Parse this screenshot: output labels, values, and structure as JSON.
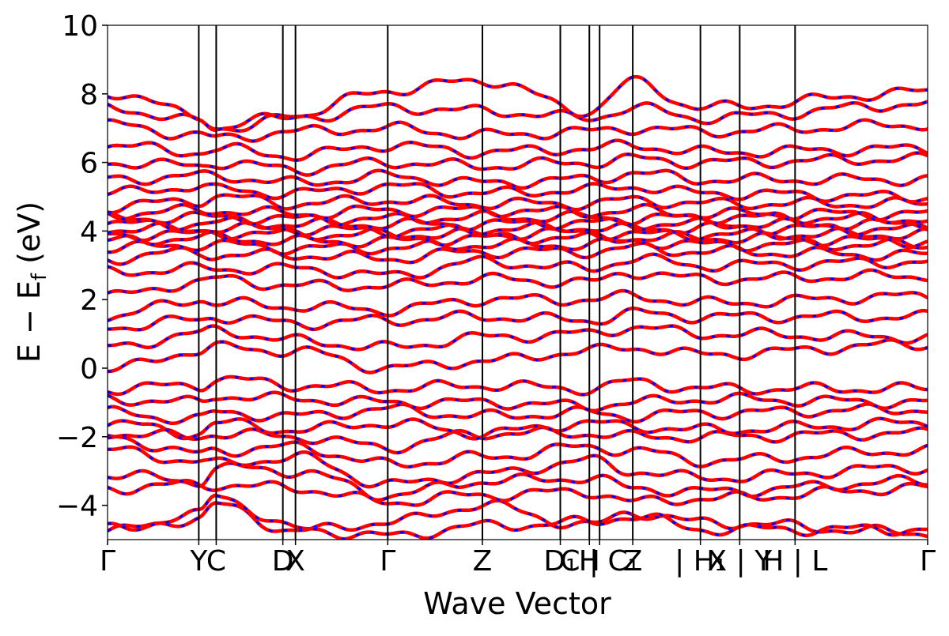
{
  "chart_data": {
    "type": "line",
    "title": "",
    "xlabel": "Wave Vector",
    "ylabel": "E − E_f (eV)",
    "ylabel_main": "E  −  E",
    "ylabel_sub": "f",
    "ylabel_unit": " (eV)",
    "ylim": [
      -5,
      10
    ],
    "yticks": [
      "−4",
      "−2",
      "0",
      "2",
      "4",
      "6",
      "8",
      "10"
    ],
    "ytick_values": [
      -4,
      -2,
      0,
      2,
      4,
      6,
      8,
      10
    ],
    "xlim": [
      0,
      24
    ],
    "k_points": [
      {
        "label": "Γ",
        "x": 0
      },
      {
        "label": "Y",
        "x": 2.67
      },
      {
        "label": "C",
        "x": 3.18
      },
      {
        "label": "D",
        "x": 5.13
      },
      {
        "label": "X",
        "x": 5.5
      },
      {
        "label": "Γ",
        "x": 8.2
      },
      {
        "label": "Z",
        "x": 10.97
      },
      {
        "label": "D₁",
        "x": 13.25
      },
      {
        "label": "H",
        "x": 14.1
      },
      {
        "label": "C | C₁",
        "x": 14.4
      },
      {
        "label": "Z",
        "x": 15.37
      },
      {
        "label": "| H₁",
        "x": 17.35
      },
      {
        "label": "X | Y",
        "x": 18.5
      },
      {
        "label": "H | L",
        "x": 20.12
      },
      {
        "label": "Γ",
        "x": 24
      }
    ],
    "series": [
      {
        "color": "#ff0000",
        "style": "solid"
      },
      {
        "color": "#0000ff",
        "style": "dashed"
      }
    ],
    "bands": [
      {
        "anchors": [
          -4.75,
          -4.4,
          -4.0,
          -4.75,
          -4.5,
          -4.0,
          -4.6,
          -4.2,
          -4.5,
          -4.8
        ]
      },
      {
        "anchors": [
          -4.7,
          -4.3,
          -3.7,
          -4.7,
          -4.9,
          -4.6,
          -4.5,
          -4.3,
          -4.7,
          -4.7
        ]
      },
      {
        "anchors": [
          -3.5,
          -3.4,
          -3.4,
          -3.5,
          -3.9,
          -3.7,
          -3.6,
          -3.9,
          -3.8,
          -3.5
        ]
      },
      {
        "anchors": [
          -3.1,
          -3.3,
          -2.9,
          -3.0,
          -3.7,
          -3.3,
          -3.2,
          -3.5,
          -3.6,
          -3.3
        ]
      },
      {
        "anchors": [
          -2.4,
          -2.7,
          -2.8,
          -2.6,
          -3.4,
          -3.1,
          -2.7,
          -3.0,
          -3.2,
          -2.9
        ]
      },
      {
        "anchors": [
          -2.0,
          -2.5,
          -2.4,
          -2.3,
          -2.8,
          -2.6,
          -2.3,
          -2.4,
          -2.7,
          -2.4
        ]
      },
      {
        "anchors": [
          -1.9,
          -2.0,
          -1.9,
          -2.0,
          -2.3,
          -1.9,
          -1.9,
          -2.0,
          -2.0,
          -1.9
        ]
      },
      {
        "anchors": [
          -1.6,
          -1.9,
          -1.6,
          -1.8,
          -1.6,
          -1.9,
          -1.6,
          -1.7,
          -1.8,
          -1.6
        ]
      },
      {
        "anchors": [
          -1.3,
          -1.5,
          -1.3,
          -1.4,
          -1.2,
          -1.4,
          -1.3,
          -1.4,
          -1.3,
          -1.2
        ]
      },
      {
        "anchors": [
          -0.9,
          -1.0,
          -0.8,
          -0.9,
          -1.0,
          -1.0,
          -1.1,
          -1.0,
          -0.9,
          -1.0
        ]
      },
      {
        "anchors": [
          -0.6,
          -0.5,
          -0.3,
          -0.5,
          -0.6,
          -0.5,
          -0.6,
          -0.4,
          -0.6,
          -0.6
        ]
      },
      {
        "anchors": [
          -0.05,
          0.5,
          0.6,
          0.5,
          0.0,
          0.2,
          0.5,
          0.6,
          0.4,
          0.7
        ]
      },
      {
        "anchors": [
          0.6,
          1.0,
          1.1,
          0.8,
          0.6,
          0.9,
          1.0,
          1.2,
          1.0,
          0.9
        ]
      },
      {
        "anchors": [
          1.2,
          1.4,
          1.5,
          1.3,
          1.4,
          1.5,
          1.4,
          1.6,
          1.5,
          1.5
        ]
      },
      {
        "anchors": [
          1.5,
          2.0,
          1.9,
          1.8,
          1.7,
          2.0,
          2.0,
          2.1,
          1.9,
          2.1
        ]
      },
      {
        "anchors": [
          2.1,
          2.5,
          2.6,
          2.4,
          2.4,
          2.6,
          2.5,
          2.8,
          2.6,
          2.7
        ]
      },
      {
        "anchors": [
          2.8,
          2.9,
          2.9,
          2.9,
          2.7,
          3.1,
          2.9,
          3.2,
          3.0,
          3.1
        ]
      },
      {
        "anchors": [
          3.2,
          3.4,
          3.3,
          3.3,
          3.2,
          3.4,
          3.4,
          3.5,
          3.4,
          3.3
        ]
      },
      {
        "anchors": [
          3.5,
          3.6,
          3.6,
          3.5,
          3.5,
          3.6,
          3.6,
          3.7,
          3.6,
          3.6
        ]
      },
      {
        "anchors": [
          3.7,
          3.8,
          3.8,
          3.7,
          3.7,
          3.8,
          3.8,
          3.8,
          3.8,
          3.7
        ]
      },
      {
        "anchors": [
          3.9,
          3.9,
          3.95,
          3.9,
          3.9,
          3.9,
          3.95,
          3.9,
          3.9,
          3.9
        ]
      },
      {
        "anchors": [
          4.05,
          4.05,
          4.1,
          4.05,
          4.0,
          4.05,
          4.1,
          4.05,
          4.1,
          4.05
        ]
      },
      {
        "anchors": [
          4.2,
          4.2,
          4.25,
          4.2,
          4.2,
          4.2,
          4.25,
          4.2,
          4.2,
          4.2
        ]
      },
      {
        "anchors": [
          4.35,
          4.4,
          4.4,
          4.35,
          4.35,
          4.4,
          4.4,
          4.35,
          4.4,
          4.35
        ]
      },
      {
        "anchors": [
          4.5,
          4.6,
          4.6,
          4.5,
          4.6,
          4.6,
          4.55,
          4.6,
          4.5,
          4.5
        ]
      },
      {
        "anchors": [
          4.7,
          4.9,
          5.0,
          4.8,
          4.9,
          4.8,
          4.8,
          4.9,
          4.8,
          4.8
        ]
      },
      {
        "anchors": [
          5.1,
          5.3,
          5.2,
          5.1,
          5.3,
          5.1,
          5.2,
          5.3,
          5.1,
          5.0
        ]
      },
      {
        "anchors": [
          5.5,
          5.6,
          5.6,
          5.4,
          5.6,
          5.4,
          5.5,
          5.7,
          5.5,
          5.5
        ]
      },
      {
        "anchors": [
          6.0,
          5.9,
          6.0,
          5.8,
          6.0,
          5.9,
          6.0,
          6.1,
          6.0,
          6.1
        ]
      },
      {
        "anchors": [
          6.5,
          6.3,
          6.4,
          6.2,
          6.5,
          6.3,
          6.4,
          6.5,
          6.3,
          6.4
        ]
      },
      {
        "anchors": [
          7.1,
          6.8,
          6.7,
          6.9,
          7.0,
          6.8,
          6.9,
          7.0,
          6.9,
          7.1
        ]
      },
      {
        "anchors": [
          7.6,
          7.2,
          7.0,
          7.3,
          7.6,
          7.5,
          7.3,
          7.6,
          7.3,
          7.7
        ]
      },
      {
        "anchors": [
          8.05,
          7.4,
          7.0,
          7.4,
          8.1,
          8.4,
          7.5,
          8.35,
          7.6,
          8.05
        ]
      }
    ]
  }
}
